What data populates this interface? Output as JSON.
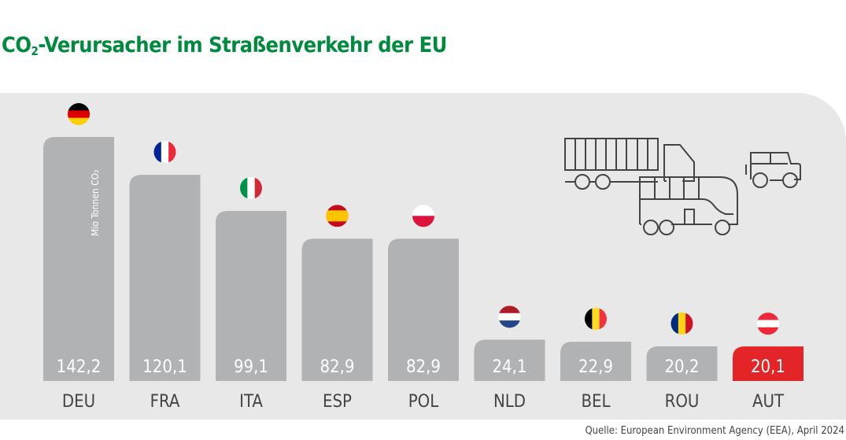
{
  "title_main": "CO",
  "title_sub": "2",
  "title_rest": "-Verursacher im Straßenverkehr der EU",
  "source": "Quelle: European Environment Agency (EEA), April 2024",
  "colors": {
    "title": "#008a3e",
    "bar": "#b1b2b3",
    "highlight": "#e42528",
    "panel": "#e7e8e7",
    "label": "#444444"
  },
  "icons": [
    "truck-icon",
    "bus-icon",
    "car-icon"
  ],
  "chart_data": {
    "type": "bar",
    "title": "CO₂-Verursacher im Straßenverkehr der EU",
    "ylabel": "Mio Tonnen CO₂",
    "categories": [
      "DEU",
      "FRA",
      "ITA",
      "ESP",
      "POL",
      "NLD",
      "BEL",
      "ROU",
      "AUT"
    ],
    "values": [
      142.2,
      120.1,
      99.1,
      82.9,
      82.9,
      24.1,
      22.9,
      20.2,
      20.1
    ],
    "value_labels": [
      "142,2",
      "120,1",
      "99,1",
      "82,9",
      "82,9",
      "24,1",
      "22,9",
      "20,2",
      "20,1"
    ],
    "highlight": "AUT",
    "flags": [
      "germany-flag",
      "france-flag",
      "italy-flag",
      "spain-flag",
      "poland-flag",
      "netherlands-flag",
      "belgium-flag",
      "romania-flag",
      "austria-flag"
    ],
    "ylim": [
      0,
      142.2
    ],
    "grid": false
  }
}
